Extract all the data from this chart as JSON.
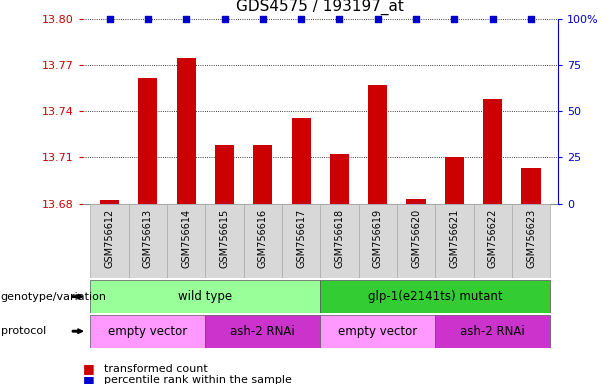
{
  "title": "GDS4575 / 193197_at",
  "samples": [
    "GSM756612",
    "GSM756613",
    "GSM756614",
    "GSM756615",
    "GSM756616",
    "GSM756617",
    "GSM756618",
    "GSM756619",
    "GSM756620",
    "GSM756621",
    "GSM756622",
    "GSM756623"
  ],
  "bar_values": [
    13.682,
    13.762,
    13.775,
    13.718,
    13.718,
    13.736,
    13.712,
    13.757,
    13.683,
    13.71,
    13.748,
    13.703
  ],
  "percentile_values": [
    100,
    100,
    100,
    100,
    100,
    100,
    100,
    100,
    100,
    100,
    100,
    100
  ],
  "ylim_left": [
    13.68,
    13.8
  ],
  "yticks_left": [
    13.68,
    13.71,
    13.74,
    13.77,
    13.8
  ],
  "ylim_right": [
    0,
    100
  ],
  "yticks_right": [
    0,
    25,
    50,
    75,
    100
  ],
  "bar_color": "#cc0000",
  "percentile_color": "#0000cc",
  "left_tick_color": "#cc0000",
  "right_tick_color": "#0000cc",
  "bar_width": 0.5,
  "genotype_groups": [
    {
      "label": "wild type",
      "start": 0,
      "end": 5,
      "color": "#99ff99"
    },
    {
      "label": "glp-1(e2141ts) mutant",
      "start": 6,
      "end": 11,
      "color": "#33cc33"
    }
  ],
  "protocol_groups": [
    {
      "label": "empty vector",
      "start": 0,
      "end": 2,
      "color": "#ff99ff"
    },
    {
      "label": "ash-2 RNAi",
      "start": 3,
      "end": 5,
      "color": "#cc33cc"
    },
    {
      "label": "empty vector",
      "start": 6,
      "end": 8,
      "color": "#ff99ff"
    },
    {
      "label": "ash-2 RNAi",
      "start": 9,
      "end": 11,
      "color": "#cc33cc"
    }
  ],
  "legend_items": [
    {
      "label": "transformed count",
      "color": "#cc0000"
    },
    {
      "label": "percentile rank within the sample",
      "color": "#0000cc"
    }
  ],
  "row_labels": [
    "genotype/variation",
    "protocol"
  ],
  "sample_cell_color": "#d8d8d8",
  "sample_cell_edge": "#aaaaaa",
  "grid_color": "black",
  "grid_linestyle": "dotted"
}
